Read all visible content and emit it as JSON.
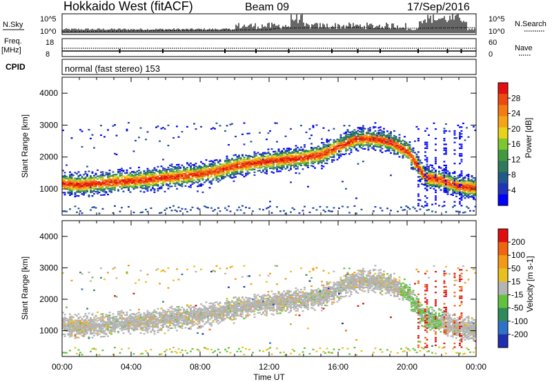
{
  "header": {
    "radar": "Hokkaido West (fitACF)",
    "beam": "Beam 09",
    "date": "17/Sep/2016"
  },
  "summary": {
    "nsky_label": "N.Sky",
    "nsearch_label": "N.Search",
    "noise_ticks": [
      "10^5",
      "10^0"
    ],
    "freq_label": "Freq.",
    "freq_unit": "[MHz]",
    "freq_ticks": [
      "18",
      "8"
    ],
    "nave_label": "Nave",
    "nave_ticks": [
      "60",
      "0"
    ],
    "cpid_label": "CPID",
    "cpid_value": "normal (fast stereo) 153"
  },
  "chart_data": [
    {
      "type": "heatmap",
      "panel": "power",
      "xlabel": "Time UT",
      "ylabel": "Slant Range [km]",
      "xticks": [
        "00:00",
        "04:00",
        "08:00",
        "12:00",
        "16:00",
        "20:00",
        "00:00"
      ],
      "xlim_hours": [
        0,
        24
      ],
      "yticks": [
        1000,
        2000,
        3000,
        4000
      ],
      "ylim_km": [
        180,
        4500
      ],
      "colorbar": {
        "label": "Power [dB]",
        "ticks": [
          4,
          8,
          12,
          16,
          20,
          24,
          28
        ],
        "colors": [
          "#0000ff",
          "#2233bb",
          "#1f5a8a",
          "#2e7a5a",
          "#3f9a3f",
          "#7fc62f",
          "#e8d21a",
          "#f3a516",
          "#f27b12",
          "#ee4a10",
          "#e40f0f"
        ]
      },
      "main_echo_band_km": [
        [
          0,
          1200
        ],
        [
          1,
          1150
        ],
        [
          2,
          1200
        ],
        [
          3,
          1250
        ],
        [
          4,
          1280
        ],
        [
          5,
          1320
        ],
        [
          6,
          1380
        ],
        [
          7,
          1430
        ],
        [
          8,
          1500
        ],
        [
          9,
          1600
        ],
        [
          10,
          1750
        ],
        [
          11,
          1830
        ],
        [
          12,
          1900
        ],
        [
          13,
          1950
        ],
        [
          14,
          2000
        ],
        [
          15,
          2100
        ],
        [
          16,
          2350
        ],
        [
          17,
          2600
        ],
        [
          18,
          2600
        ],
        [
          19,
          2500
        ],
        [
          20,
          2200
        ],
        [
          21,
          1400
        ],
        [
          22,
          1300
        ],
        [
          23,
          1100
        ],
        [
          24,
          1050
        ]
      ]
    },
    {
      "type": "heatmap",
      "panel": "velocity",
      "xlabel": "Time UT",
      "ylabel": "Slant Range [km]",
      "xticks": [
        "00:00",
        "04:00",
        "08:00",
        "12:00",
        "16:00",
        "20:00",
        "00:00"
      ],
      "xlim_hours": [
        0,
        24
      ],
      "yticks": [
        1000,
        2000,
        3000,
        4000
      ],
      "ylim_km": [
        180,
        4500
      ],
      "colorbar": {
        "label": "Velocity [m s-1]",
        "ticks": [
          200,
          100,
          50,
          15,
          -15,
          -50,
          -100,
          -200
        ],
        "colors": [
          "#1f2fb0",
          "#2f70c8",
          "#2e8a5a",
          "#62c23e",
          "#b4b4b4",
          "#e8c020",
          "#f39a15",
          "#ef6410",
          "#e00e0e"
        ]
      }
    }
  ]
}
